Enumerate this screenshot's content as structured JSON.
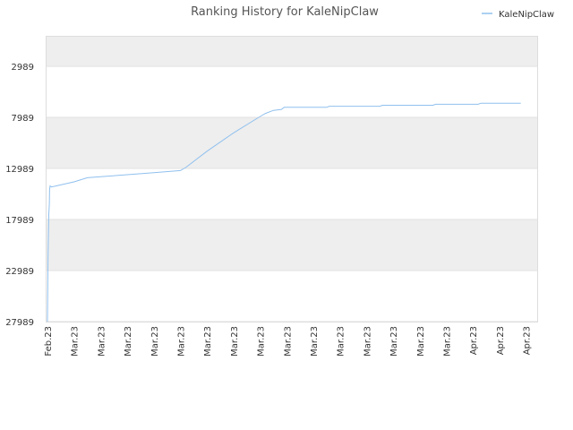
{
  "chart_data": {
    "type": "line",
    "title": "Ranking History for KaleNipClaw",
    "xlabel": "",
    "ylabel": "",
    "y_inverted": true,
    "ylim": [
      27989,
      0
    ],
    "y_ticks": [
      "2989",
      "7989",
      "12989",
      "17989",
      "22989",
      "27989"
    ],
    "x_tick_labels": [
      "Feb.23",
      "Mar.23",
      "Mar.23",
      "Mar.23",
      "Mar.23",
      "Mar.23",
      "Mar.23",
      "Mar.23",
      "Mar.23",
      "Mar.23",
      "Mar.23",
      "Mar.23",
      "Mar.23",
      "Mar.23",
      "Mar.23",
      "Mar.23",
      "Apr.23",
      "Apr.23",
      "Apr.23"
    ],
    "grid": true,
    "legend_position": "top-right",
    "series": [
      {
        "name": "KaleNipClaw",
        "color": "#90c0ee",
        "x_index": [
          0,
          0.02,
          0.05,
          0.07,
          0.08,
          0.1,
          0.15,
          0.5,
          1,
          1.5,
          2,
          3,
          4,
          5,
          5.2,
          6,
          7,
          8,
          8.2,
          8.5,
          8.8,
          8.9,
          10,
          10.5,
          10.6,
          12.5,
          12.6,
          14.5,
          14.6,
          16.2,
          16.3,
          17.8
        ],
        "y": [
          27989,
          22000,
          17500,
          16500,
          15000,
          14700,
          14800,
          14600,
          14300,
          13900,
          13800,
          13600,
          13400,
          13200,
          12900,
          11300,
          9500,
          7900,
          7600,
          7300,
          7200,
          7000,
          7000,
          7000,
          6900,
          6900,
          6800,
          6800,
          6700,
          6700,
          6600,
          6600
        ]
      }
    ]
  }
}
